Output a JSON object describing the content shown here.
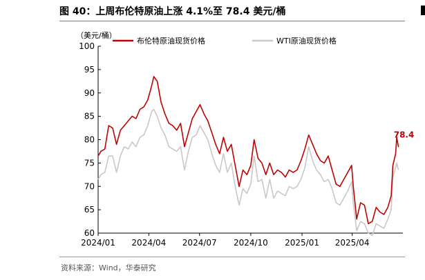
{
  "header": {
    "title": "图 40：上周布伦特原油上涨 4.1%至 78.4 美元/桶"
  },
  "footer": {
    "source": "资料来源：Wind，华泰研究"
  },
  "colors": {
    "brent": "#c00000",
    "wti": "#c8c8c8"
  },
  "chart_data": {
    "type": "line",
    "title": "",
    "xlabel": "",
    "ylabel": "",
    "unit_label": "（美元/桶）",
    "ylim": [
      60,
      100
    ],
    "yticks": [
      60,
      65,
      70,
      75,
      80,
      85,
      90,
      95,
      100
    ],
    "x_range": [
      "2024-01",
      "2025-07"
    ],
    "x_ticks": [
      "2024/01",
      "2024/04",
      "2024/07",
      "2024/10",
      "2025/01",
      "2025/04"
    ],
    "legend_position": "top",
    "grid": false,
    "series": [
      {
        "name": "布伦特原油现货价格",
        "color": "#c00000",
        "points": [
          [
            "2024-01",
            76.5
          ],
          [
            "2024-01-06",
            77.5
          ],
          [
            "2024-01-13",
            78.0
          ],
          [
            "2024-01-20",
            83.0
          ],
          [
            "2024-01-27",
            82.5
          ],
          [
            "2024-02-03",
            79.0
          ],
          [
            "2024-02-10",
            82.0
          ],
          [
            "2024-02-17",
            83.0
          ],
          [
            "2024-02-24",
            84.0
          ],
          [
            "2024-03-02",
            85.0
          ],
          [
            "2024-03-09",
            84.5
          ],
          [
            "2024-03-16",
            86.5
          ],
          [
            "2024-03-23",
            87.0
          ],
          [
            "2024-03-30",
            88.5
          ],
          [
            "2024-04-06",
            91.5
          ],
          [
            "2024-04-10",
            93.5
          ],
          [
            "2024-04-16",
            92.5
          ],
          [
            "2024-04-23",
            88.0
          ],
          [
            "2024-04-30",
            85.5
          ],
          [
            "2024-05-07",
            83.5
          ],
          [
            "2024-05-14",
            83.0
          ],
          [
            "2024-05-21",
            82.0
          ],
          [
            "2024-05-28",
            83.5
          ],
          [
            "2024-06-04",
            78.5
          ],
          [
            "2024-06-11",
            81.5
          ],
          [
            "2024-06-18",
            84.5
          ],
          [
            "2024-06-25",
            86.0
          ],
          [
            "2024-07-02",
            87.5
          ],
          [
            "2024-07-09",
            85.5
          ],
          [
            "2024-07-16",
            84.0
          ],
          [
            "2024-07-23",
            81.5
          ],
          [
            "2024-07-30",
            79.0
          ],
          [
            "2024-08-06",
            77.0
          ],
          [
            "2024-08-13",
            80.5
          ],
          [
            "2024-08-20",
            77.5
          ],
          [
            "2024-08-27",
            79.0
          ],
          [
            "2024-09-03",
            74.5
          ],
          [
            "2024-09-10",
            70.0
          ],
          [
            "2024-09-17",
            73.5
          ],
          [
            "2024-09-24",
            72.5
          ],
          [
            "2024-10-01",
            74.5
          ],
          [
            "2024-10-07",
            80.0
          ],
          [
            "2024-10-14",
            76.0
          ],
          [
            "2024-10-21",
            75.0
          ],
          [
            "2024-10-28",
            72.5
          ],
          [
            "2024-11-04",
            75.0
          ],
          [
            "2024-11-11",
            72.5
          ],
          [
            "2024-11-18",
            73.5
          ],
          [
            "2024-11-25",
            73.0
          ],
          [
            "2024-12-02",
            72.0
          ],
          [
            "2024-12-09",
            73.5
          ],
          [
            "2024-12-16",
            73.0
          ],
          [
            "2024-12-23",
            73.5
          ],
          [
            "2024-12-30",
            75.5
          ],
          [
            "2025-01-06",
            78.0
          ],
          [
            "2025-01-13",
            81.0
          ],
          [
            "2025-01-20",
            79.0
          ],
          [
            "2025-01-27",
            77.0
          ],
          [
            "2025-02-03",
            75.5
          ],
          [
            "2025-02-10",
            75.0
          ],
          [
            "2025-02-17",
            76.5
          ],
          [
            "2025-02-24",
            73.5
          ],
          [
            "2025-03-03",
            70.5
          ],
          [
            "2025-03-10",
            70.0
          ],
          [
            "2025-03-17",
            71.5
          ],
          [
            "2025-03-24",
            73.0
          ],
          [
            "2025-03-31",
            74.5
          ],
          [
            "2025-04-03",
            70.0
          ],
          [
            "2025-04-09",
            63.0
          ],
          [
            "2025-04-16",
            66.5
          ],
          [
            "2025-04-23",
            66.0
          ],
          [
            "2025-04-30",
            62.0
          ],
          [
            "2025-05-07",
            62.5
          ],
          [
            "2025-05-14",
            65.5
          ],
          [
            "2025-05-21",
            64.5
          ],
          [
            "2025-05-28",
            64.0
          ],
          [
            "2025-06-04",
            65.5
          ],
          [
            "2025-06-10",
            68.0
          ],
          [
            "2025-06-13",
            74.5
          ],
          [
            "2025-06-18",
            77.0
          ],
          [
            "2025-06-20",
            80.5
          ],
          [
            "2025-06-23",
            78.4
          ]
        ]
      },
      {
        "name": "WTI原油现货价格",
        "color": "#c8c8c8",
        "points": [
          [
            "2024-01",
            71.5
          ],
          [
            "2024-01-06",
            72.5
          ],
          [
            "2024-01-13",
            73.0
          ],
          [
            "2024-01-20",
            76.5
          ],
          [
            "2024-01-27",
            76.5
          ],
          [
            "2024-02-03",
            73.0
          ],
          [
            "2024-02-10",
            76.5
          ],
          [
            "2024-02-17",
            78.5
          ],
          [
            "2024-02-24",
            78.0
          ],
          [
            "2024-03-02",
            79.5
          ],
          [
            "2024-03-09",
            78.5
          ],
          [
            "2024-03-16",
            80.5
          ],
          [
            "2024-03-23",
            81.0
          ],
          [
            "2024-03-30",
            83.0
          ],
          [
            "2024-04-06",
            86.0
          ],
          [
            "2024-04-10",
            86.5
          ],
          [
            "2024-04-16",
            85.0
          ],
          [
            "2024-04-23",
            82.5
          ],
          [
            "2024-04-30",
            81.0
          ],
          [
            "2024-05-07",
            78.5
          ],
          [
            "2024-05-14",
            78.0
          ],
          [
            "2024-05-21",
            77.5
          ],
          [
            "2024-05-28",
            78.5
          ],
          [
            "2024-06-04",
            73.5
          ],
          [
            "2024-06-11",
            77.5
          ],
          [
            "2024-06-18",
            80.5
          ],
          [
            "2024-06-25",
            81.0
          ],
          [
            "2024-07-02",
            83.0
          ],
          [
            "2024-07-09",
            81.5
          ],
          [
            "2024-07-16",
            80.0
          ],
          [
            "2024-07-23",
            77.0
          ],
          [
            "2024-07-30",
            74.5
          ],
          [
            "2024-08-06",
            73.0
          ],
          [
            "2024-08-13",
            77.0
          ],
          [
            "2024-08-20",
            73.0
          ],
          [
            "2024-08-27",
            75.0
          ],
          [
            "2024-09-03",
            70.0
          ],
          [
            "2024-09-10",
            66.0
          ],
          [
            "2024-09-17",
            69.5
          ],
          [
            "2024-09-24",
            68.5
          ],
          [
            "2024-10-01",
            70.5
          ],
          [
            "2024-10-07",
            76.5
          ],
          [
            "2024-10-14",
            71.0
          ],
          [
            "2024-10-21",
            71.5
          ],
          [
            "2024-10-28",
            67.5
          ],
          [
            "2024-11-04",
            71.5
          ],
          [
            "2024-11-11",
            67.5
          ],
          [
            "2024-11-18",
            69.0
          ],
          [
            "2024-11-25",
            68.5
          ],
          [
            "2024-12-02",
            68.0
          ],
          [
            "2024-12-09",
            70.0
          ],
          [
            "2024-12-16",
            69.5
          ],
          [
            "2024-12-23",
            70.0
          ],
          [
            "2024-12-30",
            71.5
          ],
          [
            "2025-01-06",
            74.0
          ],
          [
            "2025-01-13",
            78.5
          ],
          [
            "2025-01-20",
            75.5
          ],
          [
            "2025-01-27",
            73.5
          ],
          [
            "2025-02-03",
            72.5
          ],
          [
            "2025-02-10",
            71.0
          ],
          [
            "2025-02-17",
            71.5
          ],
          [
            "2025-02-24",
            69.5
          ],
          [
            "2025-03-03",
            66.5
          ],
          [
            "2025-03-10",
            66.0
          ],
          [
            "2025-03-17",
            67.5
          ],
          [
            "2025-03-24",
            69.0
          ],
          [
            "2025-03-31",
            71.0
          ],
          [
            "2025-04-03",
            66.5
          ],
          [
            "2025-04-09",
            60.5
          ],
          [
            "2025-04-16",
            62.5
          ],
          [
            "2025-04-23",
            62.0
          ],
          [
            "2025-04-30",
            60.0
          ],
          [
            "2025-05-07",
            59.5
          ],
          [
            "2025-05-14",
            62.0
          ],
          [
            "2025-05-21",
            61.5
          ],
          [
            "2025-05-28",
            61.0
          ],
          [
            "2025-06-04",
            63.0
          ],
          [
            "2025-06-10",
            65.0
          ],
          [
            "2025-06-13",
            72.0
          ],
          [
            "2025-06-18",
            74.0
          ],
          [
            "2025-06-20",
            75.0
          ],
          [
            "2025-06-23",
            73.5
          ]
        ]
      }
    ],
    "annotations": [
      {
        "label": "78.4",
        "series": 0,
        "date": "2025-06-23",
        "value": 78.4
      }
    ]
  }
}
